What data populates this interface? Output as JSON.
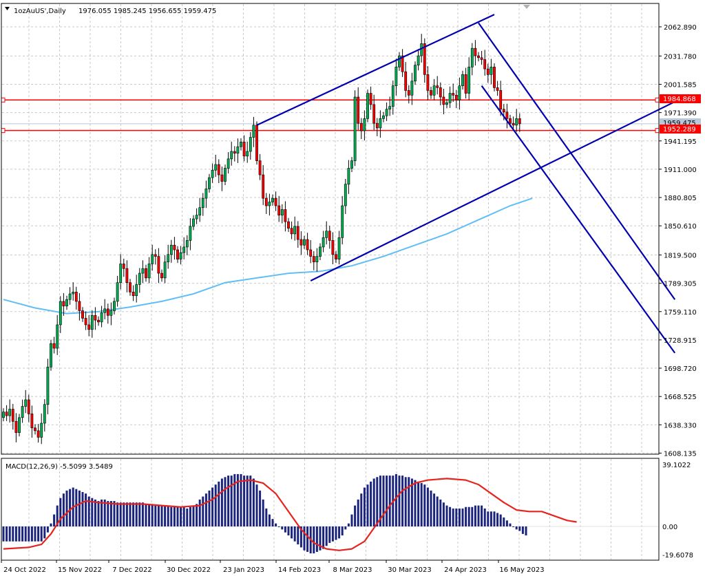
{
  "header": {
    "symbol_label": "1ozAuUS',Daily",
    "ohlc": "1976.055 1985.245 1956.655 1959.475"
  },
  "macd": {
    "label": "MACD(12,26,9) -5.5099 3.5489",
    "y_top": "39.1022",
    "y_zero": "0.00",
    "y_bottom": "-19.6078"
  },
  "price_axis": {
    "ticks": [
      "2062.890",
      "2031.780",
      "2001.585",
      "1971.390",
      "1941.195",
      "1911.000",
      "1880.805",
      "1850.610",
      "1819.500",
      "1789.305",
      "1759.110",
      "1728.915",
      "1698.720",
      "1668.525",
      "1638.330",
      "1608.135"
    ],
    "current": "1959.475",
    "level_1": "1984.868",
    "level_2": "1952.289"
  },
  "time_axis": {
    "ticks": [
      "24 Oct 2022",
      "15 Nov 2022",
      "7 Dec 2022",
      "30 Dec 2022",
      "23 Jan 2023",
      "14 Feb 2023",
      "8 Mar 2023",
      "30 Mar 2023",
      "24 Apr 2023",
      "16 May 2023"
    ]
  },
  "colors": {
    "bull": "#00b050",
    "bear": "#ff0000",
    "wick": "#000000",
    "channel": "#0000b0",
    "ma": "#5fbef5",
    "level": "#ff0000",
    "grid": "#c8c8c8",
    "hist": "#1a237e",
    "signal": "#e6241e",
    "current_bg": "#b8c8d8"
  },
  "chart_data": {
    "type": "candlestick",
    "timeframe": "Daily",
    "ylim": [
      1608.135,
      2075
    ],
    "close": [
      1652,
      1648,
      1655,
      1642,
      1630,
      1646,
      1658,
      1665,
      1650,
      1635,
      1632,
      1625,
      1640,
      1660,
      1700,
      1725,
      1720,
      1745,
      1770,
      1765,
      1772,
      1778,
      1780,
      1770,
      1760,
      1752,
      1745,
      1740,
      1755,
      1750,
      1748,
      1758,
      1762,
      1755,
      1760,
      1770,
      1790,
      1810,
      1805,
      1790,
      1780,
      1776,
      1788,
      1800,
      1805,
      1795,
      1810,
      1820,
      1818,
      1800,
      1795,
      1812,
      1820,
      1830,
      1825,
      1815,
      1822,
      1828,
      1835,
      1850,
      1858,
      1862,
      1870,
      1880,
      1890,
      1902,
      1910,
      1916,
      1905,
      1898,
      1912,
      1922,
      1930,
      1928,
      1935,
      1940,
      1925,
      1930,
      1945,
      1958,
      1920,
      1905,
      1880,
      1872,
      1876,
      1880,
      1872,
      1862,
      1868,
      1855,
      1848,
      1842,
      1850,
      1836,
      1830,
      1836,
      1825,
      1818,
      1812,
      1818,
      1828,
      1838,
      1845,
      1835,
      1820,
      1815,
      1838,
      1872,
      1895,
      1912,
      1920,
      1988,
      1960,
      1952,
      1965,
      1992,
      1980,
      1960,
      1955,
      1965,
      1968,
      1975,
      1978,
      2000,
      2020,
      2032,
      2015,
      1995,
      1990,
      2005,
      2022,
      2032,
      2045,
      2012,
      1995,
      1990,
      2000,
      1998,
      1988,
      1980,
      1982,
      1992,
      1990,
      1985,
      2000,
      2012,
      1992,
      2020,
      2040,
      2032,
      2030,
      2028,
      2018,
      2012,
      2020,
      1998,
      1995,
      1975,
      1972,
      1965,
      1960,
      1958,
      1965,
      1959.475
    ],
    "moving_average": [
      {
        "i": 0,
        "v": 1772
      },
      {
        "i": 10,
        "v": 1763
      },
      {
        "i": 20,
        "v": 1757
      },
      {
        "i": 30,
        "v": 1759
      },
      {
        "i": 40,
        "v": 1764
      },
      {
        "i": 50,
        "v": 1770
      },
      {
        "i": 60,
        "v": 1778
      },
      {
        "i": 70,
        "v": 1790
      },
      {
        "i": 80,
        "v": 1795
      },
      {
        "i": 90,
        "v": 1800
      },
      {
        "i": 100,
        "v": 1802
      },
      {
        "i": 110,
        "v": 1808
      },
      {
        "i": 120,
        "v": 1818
      },
      {
        "i": 130,
        "v": 1830
      },
      {
        "i": 140,
        "v": 1842
      },
      {
        "i": 150,
        "v": 1857
      },
      {
        "i": 160,
        "v": 1872
      },
      {
        "i": 167,
        "v": 1880
      }
    ],
    "channel_lines": [
      {
        "name": "upper-rising",
        "from": {
          "i": 80,
          "v": 1958
        },
        "to": {
          "i": 155,
          "v": 2076
        }
      },
      {
        "name": "lower-rising",
        "from": {
          "i": 97,
          "v": 1792
        },
        "to": {
          "i": 212,
          "v": 1983
        }
      },
      {
        "name": "falling-upper",
        "from": {
          "i": 150,
          "v": 2067
        },
        "to": {
          "i": 212,
          "v": 1772
        }
      },
      {
        "name": "falling-lower",
        "from": {
          "i": 151,
          "v": 2000
        },
        "to": {
          "i": 212,
          "v": 1715
        }
      }
    ],
    "horizontal_levels": [
      1984.868,
      1952.289
    ],
    "macd_params": "12,26,9",
    "macd_ylim": [
      -19.6078,
      39.1022
    ],
    "macd_histogram": [
      -10,
      -10,
      -10,
      -10,
      -10,
      -10,
      -10,
      -10,
      -10,
      -10,
      -10,
      -10,
      -10,
      -8,
      -4,
      2,
      8,
      14,
      19,
      22,
      24,
      25,
      26,
      25,
      24,
      23,
      22,
      20,
      19,
      18,
      17,
      18,
      18,
      17,
      17,
      17,
      16,
      16,
      16,
      16,
      16,
      16,
      16,
      16,
      16,
      15,
      15,
      15,
      14,
      14,
      14,
      14,
      14,
      13,
      13,
      13,
      13,
      13,
      12,
      13,
      14,
      15,
      18,
      20,
      22,
      24,
      26,
      28,
      30,
      32,
      33,
      34,
      34,
      35,
      35,
      35,
      34,
      34,
      34,
      32,
      28,
      24,
      18,
      12,
      8,
      5,
      2,
      0,
      -2,
      -4,
      -6,
      -8,
      -10,
      -12,
      -14,
      -16,
      -17,
      -18,
      -18,
      -17,
      -16,
      -15,
      -13,
      -11,
      -10,
      -9,
      -8,
      -6,
      -2,
      2,
      8,
      14,
      18,
      22,
      26,
      28,
      30,
      32,
      33,
      34,
      34,
      34,
      34,
      34,
      35,
      34,
      34,
      33,
      33,
      32,
      31,
      30,
      29,
      28,
      26,
      24,
      22,
      20,
      18,
      16,
      14,
      13,
      12,
      12,
      12,
      12,
      13,
      13,
      13,
      14,
      14,
      14,
      12,
      10,
      10,
      10,
      9,
      8,
      6,
      4,
      2,
      0,
      -2,
      -3,
      -5,
      -6
    ],
    "macd_signal": [
      {
        "i": 0,
        "v": -15
      },
      {
        "i": 8,
        "v": -14
      },
      {
        "i": 12,
        "v": -12
      },
      {
        "i": 15,
        "v": -5
      },
      {
        "i": 18,
        "v": 5
      },
      {
        "i": 22,
        "v": 13
      },
      {
        "i": 26,
        "v": 17
      },
      {
        "i": 30,
        "v": 16
      },
      {
        "i": 36,
        "v": 15
      },
      {
        "i": 44,
        "v": 15
      },
      {
        "i": 50,
        "v": 14
      },
      {
        "i": 56,
        "v": 13
      },
      {
        "i": 62,
        "v": 14
      },
      {
        "i": 66,
        "v": 18
      },
      {
        "i": 70,
        "v": 25
      },
      {
        "i": 74,
        "v": 30
      },
      {
        "i": 78,
        "v": 31
      },
      {
        "i": 82,
        "v": 29
      },
      {
        "i": 86,
        "v": 22
      },
      {
        "i": 90,
        "v": 10
      },
      {
        "i": 94,
        "v": -2
      },
      {
        "i": 98,
        "v": -11
      },
      {
        "i": 102,
        "v": -15
      },
      {
        "i": 106,
        "v": -16
      },
      {
        "i": 110,
        "v": -15
      },
      {
        "i": 114,
        "v": -10
      },
      {
        "i": 118,
        "v": 2
      },
      {
        "i": 122,
        "v": 14
      },
      {
        "i": 126,
        "v": 24
      },
      {
        "i": 130,
        "v": 29
      },
      {
        "i": 134,
        "v": 31
      },
      {
        "i": 140,
        "v": 32
      },
      {
        "i": 146,
        "v": 31
      },
      {
        "i": 150,
        "v": 28
      },
      {
        "i": 154,
        "v": 22
      },
      {
        "i": 158,
        "v": 16
      },
      {
        "i": 162,
        "v": 11
      },
      {
        "i": 166,
        "v": 10
      },
      {
        "i": 170,
        "v": 10
      },
      {
        "i": 174,
        "v": 7
      },
      {
        "i": 178,
        "v": 4
      },
      {
        "i": 181,
        "v": 3
      }
    ]
  }
}
